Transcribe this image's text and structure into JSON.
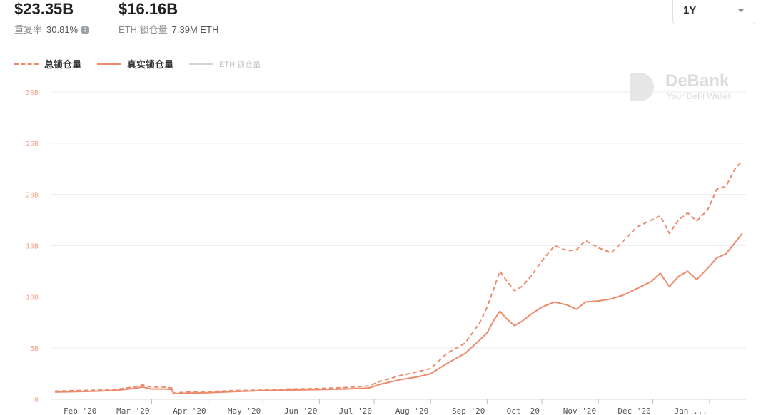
{
  "stats": {
    "total_value": "$23.35B",
    "repeat_label": "重复率",
    "repeat_value": "30.81%",
    "help_icon": "question-circle-icon",
    "real_value": "$16.16B",
    "eth_label": "ETH 锁仓量",
    "eth_value": "7.39M ETH"
  },
  "range_select": {
    "value": "1Y",
    "icon": "chevron-down-icon"
  },
  "watermark": {
    "title": "DeBank",
    "subtitle": "Your DeFi Wallet"
  },
  "colors": {
    "accent": "#ee8a6c",
    "eth_line": "#cccccc",
    "grid": "#ececec",
    "tick_y": "#f0a896"
  },
  "chart_data": {
    "type": "line",
    "x_labels": [
      "Feb '20",
      "Mar '20",
      "Apr '20",
      "May '20",
      "Jun '20",
      "Jul '20",
      "Aug '20",
      "Sep '20",
      "Oct '20",
      "Nov '20",
      "Dec '20",
      "Jan ..."
    ],
    "y_ticks": [
      "0",
      "5B",
      "10B",
      "15B",
      "20B",
      "25B",
      "30B"
    ],
    "ylim": [
      0,
      30
    ],
    "y_unit": "B",
    "grid": true,
    "legend_position": "top-left",
    "series": [
      {
        "name": "总锁仓量",
        "style": "dashed",
        "points": [
          [
            "2020-01-08",
            0.8
          ],
          [
            "2020-01-20",
            0.85
          ],
          [
            "2020-02-01",
            0.9
          ],
          [
            "2020-02-12",
            1.0
          ],
          [
            "2020-02-20",
            1.2
          ],
          [
            "2020-02-25",
            1.4
          ],
          [
            "2020-03-01",
            1.2
          ],
          [
            "2020-03-08",
            1.2
          ],
          [
            "2020-03-12",
            1.1
          ],
          [
            "2020-03-13",
            0.6
          ],
          [
            "2020-03-20",
            0.7
          ],
          [
            "2020-04-01",
            0.75
          ],
          [
            "2020-04-15",
            0.85
          ],
          [
            "2020-05-01",
            0.9
          ],
          [
            "2020-05-15",
            1.0
          ],
          [
            "2020-06-01",
            1.05
          ],
          [
            "2020-06-15",
            1.15
          ],
          [
            "2020-06-28",
            1.3
          ],
          [
            "2020-07-05",
            1.8
          ],
          [
            "2020-07-15",
            2.3
          ],
          [
            "2020-07-25",
            2.7
          ],
          [
            "2020-08-01",
            3.0
          ],
          [
            "2020-08-10",
            4.5
          ],
          [
            "2020-08-20",
            5.5
          ],
          [
            "2020-08-28",
            7.5
          ],
          [
            "2020-09-01",
            9.0
          ],
          [
            "2020-09-05",
            11.0
          ],
          [
            "2020-09-08",
            12.5
          ],
          [
            "2020-09-12",
            11.5
          ],
          [
            "2020-09-16",
            10.6
          ],
          [
            "2020-09-20",
            11.0
          ],
          [
            "2020-09-25",
            12.0
          ],
          [
            "2020-10-01",
            13.5
          ],
          [
            "2020-10-08",
            15.0
          ],
          [
            "2020-10-15",
            14.5
          ],
          [
            "2020-10-20",
            14.6
          ],
          [
            "2020-10-25",
            15.5
          ],
          [
            "2020-11-01",
            14.8
          ],
          [
            "2020-11-08",
            14.3
          ],
          [
            "2020-11-15",
            15.5
          ],
          [
            "2020-11-22",
            16.8
          ],
          [
            "2020-11-30",
            17.5
          ],
          [
            "2020-12-05",
            17.9
          ],
          [
            "2020-12-10",
            16.2
          ],
          [
            "2020-12-15",
            17.5
          ],
          [
            "2020-12-20",
            18.2
          ],
          [
            "2020-12-25",
            17.4
          ],
          [
            "2020-12-31",
            18.5
          ],
          [
            "2021-01-05",
            20.5
          ],
          [
            "2021-01-10",
            20.8
          ],
          [
            "2021-01-15",
            22.5
          ],
          [
            "2021-01-19",
            23.3
          ]
        ]
      },
      {
        "name": "真实锁仓量",
        "style": "solid",
        "points": [
          [
            "2020-01-08",
            0.7
          ],
          [
            "2020-01-20",
            0.75
          ],
          [
            "2020-02-01",
            0.8
          ],
          [
            "2020-02-12",
            0.9
          ],
          [
            "2020-02-20",
            1.05
          ],
          [
            "2020-02-25",
            1.2
          ],
          [
            "2020-03-01",
            1.0
          ],
          [
            "2020-03-08",
            1.0
          ],
          [
            "2020-03-12",
            0.95
          ],
          [
            "2020-03-13",
            0.55
          ],
          [
            "2020-03-20",
            0.6
          ],
          [
            "2020-04-01",
            0.65
          ],
          [
            "2020-04-15",
            0.75
          ],
          [
            "2020-05-01",
            0.85
          ],
          [
            "2020-05-15",
            0.9
          ],
          [
            "2020-06-01",
            0.95
          ],
          [
            "2020-06-15",
            1.0
          ],
          [
            "2020-06-28",
            1.1
          ],
          [
            "2020-07-05",
            1.5
          ],
          [
            "2020-07-15",
            1.9
          ],
          [
            "2020-07-25",
            2.2
          ],
          [
            "2020-08-01",
            2.5
          ],
          [
            "2020-08-10",
            3.5
          ],
          [
            "2020-08-20",
            4.5
          ],
          [
            "2020-08-28",
            5.8
          ],
          [
            "2020-09-01",
            6.5
          ],
          [
            "2020-09-05",
            7.8
          ],
          [
            "2020-09-08",
            8.6
          ],
          [
            "2020-09-12",
            7.8
          ],
          [
            "2020-09-16",
            7.2
          ],
          [
            "2020-09-20",
            7.6
          ],
          [
            "2020-09-25",
            8.3
          ],
          [
            "2020-10-01",
            9.0
          ],
          [
            "2020-10-08",
            9.5
          ],
          [
            "2020-10-15",
            9.2
          ],
          [
            "2020-10-20",
            8.8
          ],
          [
            "2020-10-25",
            9.5
          ],
          [
            "2020-11-01",
            9.6
          ],
          [
            "2020-11-08",
            9.8
          ],
          [
            "2020-11-15",
            10.2
          ],
          [
            "2020-11-22",
            10.8
          ],
          [
            "2020-11-30",
            11.5
          ],
          [
            "2020-12-05",
            12.3
          ],
          [
            "2020-12-10",
            11.0
          ],
          [
            "2020-12-15",
            12.0
          ],
          [
            "2020-12-20",
            12.5
          ],
          [
            "2020-12-25",
            11.7
          ],
          [
            "2020-12-31",
            12.8
          ],
          [
            "2021-01-05",
            13.8
          ],
          [
            "2021-01-10",
            14.2
          ],
          [
            "2021-01-15",
            15.3
          ],
          [
            "2021-01-19",
            16.2
          ]
        ]
      },
      {
        "name": "ETH 锁仓量",
        "style": "solid",
        "hidden": true,
        "points": []
      }
    ]
  }
}
